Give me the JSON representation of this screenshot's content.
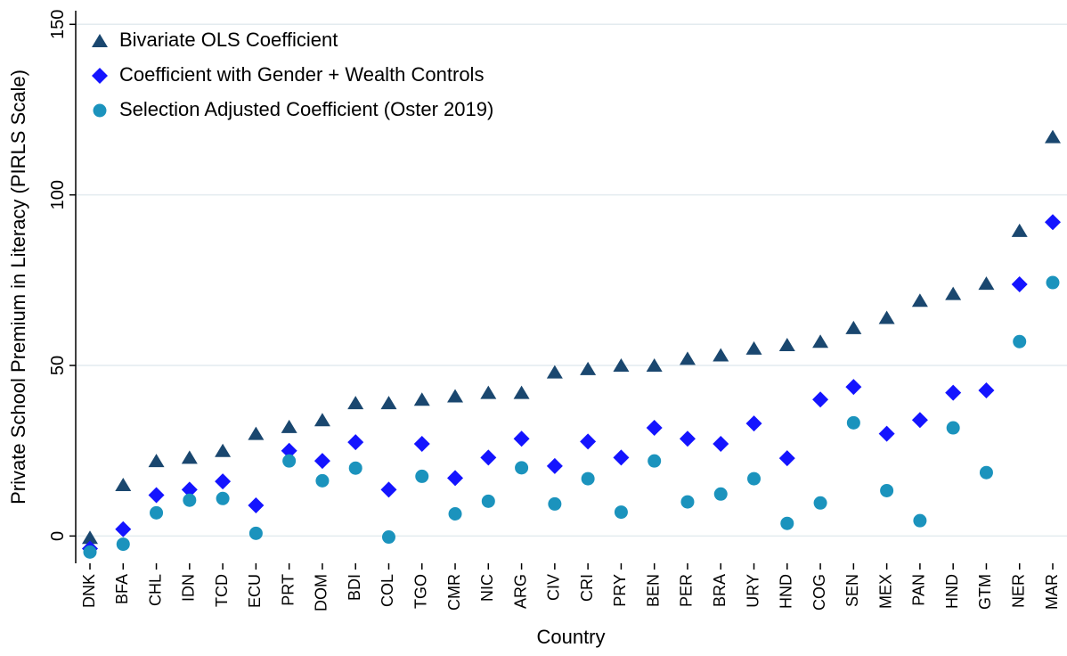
{
  "chart_data": {
    "type": "scatter",
    "x_label": "Country",
    "y_label": "Private School Premium in Literacy (PIRLS Scale)",
    "categories": [
      "DNK",
      "BFA",
      "CHL",
      "IDN",
      "TCD",
      "ECU",
      "PRT",
      "DOM",
      "BDI",
      "COL",
      "TGO",
      "CMR",
      "NIC",
      "ARG",
      "CIV",
      "CRI",
      "PRY",
      "BEN",
      "PER",
      "BRA",
      "URY",
      "HND",
      "COG",
      "SEN",
      "MEX",
      "PAN",
      "HND",
      "GTM",
      "NER",
      "MAR"
    ],
    "series": [
      {
        "name": "Bivariate OLS Coefficient",
        "color": "#1a476f",
        "marker": "triangle",
        "values": [
          -0.5,
          15,
          22,
          23,
          25,
          30,
          32,
          34,
          39,
          39,
          40,
          41,
          42,
          42,
          48,
          49,
          50,
          50,
          52,
          53,
          55,
          56,
          57,
          61,
          64,
          69,
          71,
          74,
          89.5,
          117
        ]
      },
      {
        "name": "Coefficient with Gender + Wealth Controls",
        "color": "#1414ff",
        "marker": "diamond",
        "values": [
          -3.7,
          2,
          12,
          13.6,
          16,
          9,
          25,
          22,
          27.5,
          13.6,
          27,
          17,
          23,
          28.5,
          20.5,
          27.7,
          23,
          31.7,
          28.5,
          27,
          33,
          22.8,
          40,
          43.7,
          30,
          34,
          42,
          42.7,
          73.8,
          92
        ]
      },
      {
        "name": "Selection Adjusted Coefficient (Oster 2019)",
        "color": "#1b93bd",
        "marker": "circle",
        "values": [
          -4.7,
          -2.4,
          6.8,
          10.5,
          11,
          0.8,
          22,
          16.2,
          19.9,
          -0.3,
          17.5,
          6.5,
          10.2,
          20,
          9.4,
          16.8,
          7,
          22,
          10,
          12.3,
          16.8,
          3.7,
          9.7,
          33.2,
          13.3,
          4.5,
          31.7,
          18.6,
          57,
          74.3
        ]
      }
    ],
    "ylim": [
      -8,
      154
    ],
    "yticks": [
      0,
      50,
      100,
      150
    ],
    "grid": true,
    "legend": "top-left"
  }
}
